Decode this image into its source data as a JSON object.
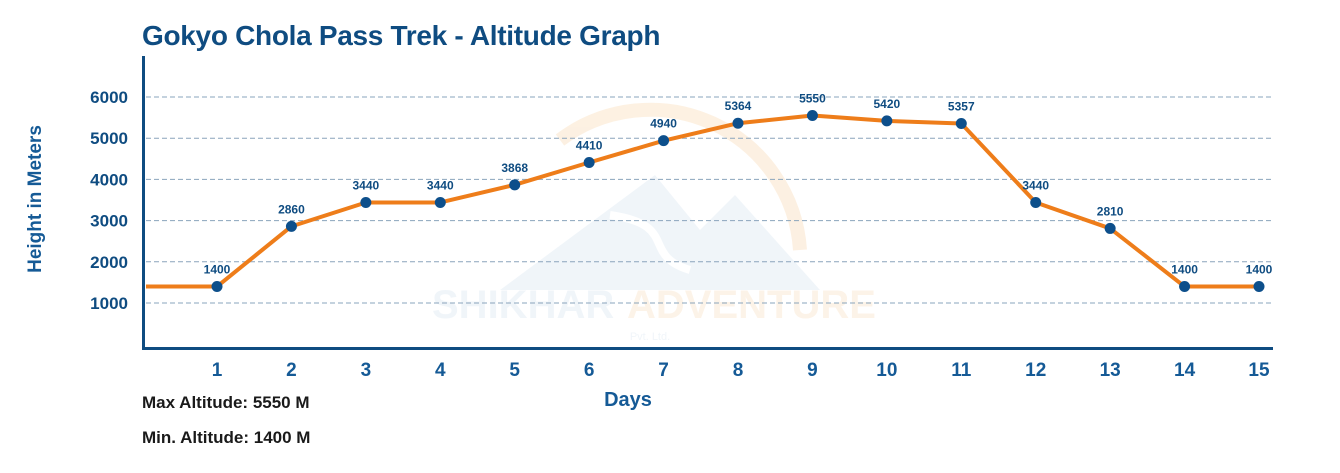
{
  "title": "Gokyo Chola Pass Trek - Altitude Graph",
  "chart_data": {
    "type": "line",
    "title": "Gokyo Chola Pass Trek - Altitude Graph",
    "xlabel": "Days",
    "ylabel": "Height in Meters",
    "categories": [
      "1",
      "2",
      "3",
      "4",
      "5",
      "6",
      "7",
      "8",
      "9",
      "10",
      "11",
      "12",
      "13",
      "14",
      "15"
    ],
    "series": [
      {
        "name": "Altitude",
        "values": [
          1400,
          2860,
          3440,
          3440,
          3868,
          4410,
          4940,
          5364,
          5550,
          5420,
          5357,
          3440,
          2810,
          1400,
          1400
        ]
      }
    ],
    "y_ticks": [
      "6000",
      "5000",
      "4000",
      "3000",
      "2000",
      "1000"
    ],
    "ylim": [
      0,
      6500
    ],
    "grid": true,
    "legend": null,
    "colors": {
      "line": "#ee7d1a",
      "marker": "#0d4f8b",
      "axis": "#0f4c81",
      "grid": "#8aa4bc"
    }
  },
  "stats": {
    "max": "Max Altitude: 5550 M",
    "min": "Min. Altitude: 1400 M"
  },
  "watermark": {
    "brand_left": "SHIKHAR",
    "brand_right": "ADVENTURE",
    "sub": "Pvt. Ltd."
  }
}
